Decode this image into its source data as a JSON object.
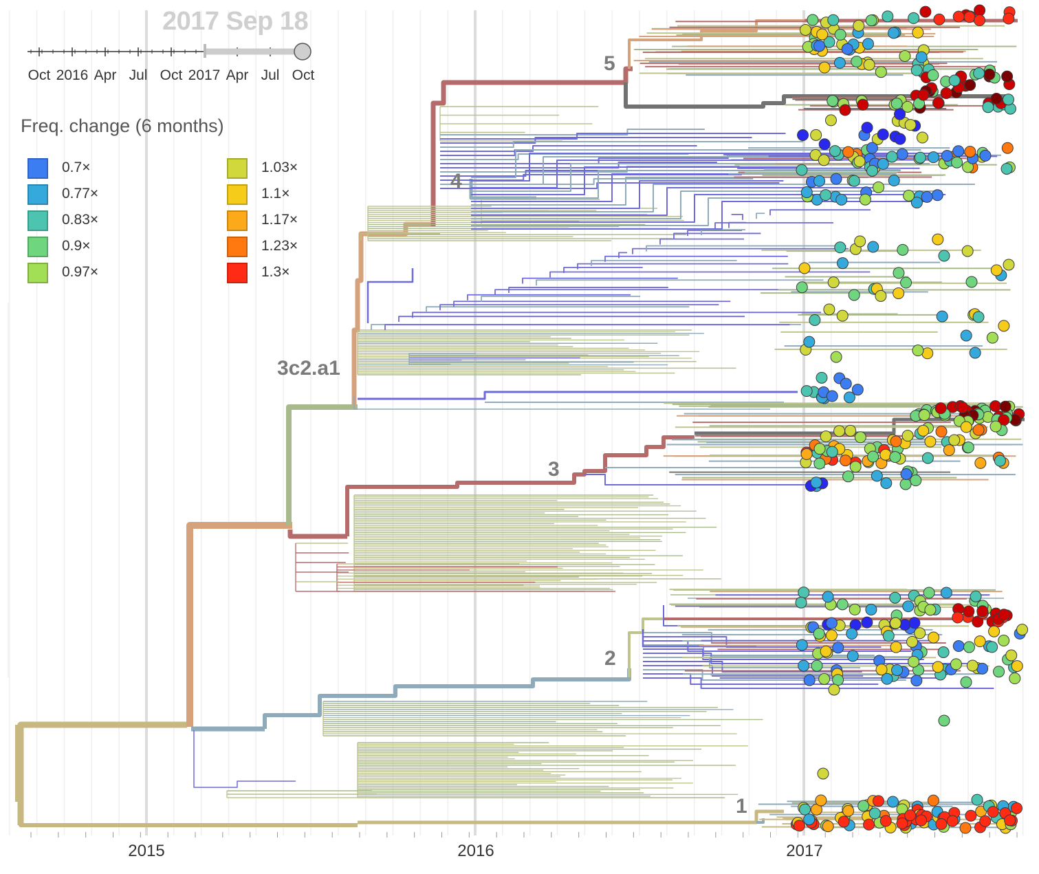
{
  "header": {
    "date": "2017 Sep 18"
  },
  "timeline_slider": {
    "ticks": [
      "Oct",
      "2016",
      "Apr",
      "Jul",
      "Oct",
      "2017",
      "Apr",
      "Jul",
      "Oct"
    ],
    "value": "2017 Sep 18"
  },
  "legend": {
    "title": "Freq. change (6 months)",
    "items": [
      {
        "label": "0.7×",
        "color": "#3c7df2"
      },
      {
        "label": "0.77×",
        "color": "#36a9dc"
      },
      {
        "label": "0.83×",
        "color": "#4cc4b0"
      },
      {
        "label": "0.9×",
        "color": "#6fd67f"
      },
      {
        "label": "0.97×",
        "color": "#a3de57"
      },
      {
        "label": "1.03×",
        "color": "#d1d83c"
      },
      {
        "label": "1.1×",
        "color": "#f6cc1a"
      },
      {
        "label": "1.17×",
        "color": "#fca91a"
      },
      {
        "label": "1.23×",
        "color": "#ff7810"
      },
      {
        "label": "1.3×",
        "color": "#ff2b14"
      }
    ]
  },
  "chart_data": {
    "type": "phylogenetic-tree",
    "x_axis": {
      "type": "time",
      "ticks": [
        "2015",
        "2016",
        "2017"
      ]
    },
    "clade_labels": [
      "5",
      "4",
      "3c2.a1",
      "3",
      "2",
      "1"
    ],
    "color_by": "Freq. change (6 months)",
    "colors": {
      "trunk_tan": "#c7b882",
      "trunk_salmon": "#d5a27c",
      "sage": "#a8b98b",
      "rose": "#b66b6b",
      "slate": "#8eaabb",
      "grey": "#727272",
      "purple": "#6f6ad9",
      "olive_light": "#bfc48d",
      "darkred": "#7a0000",
      "red_dark": "#cc0000",
      "blue_dark": "#2828ee"
    }
  }
}
